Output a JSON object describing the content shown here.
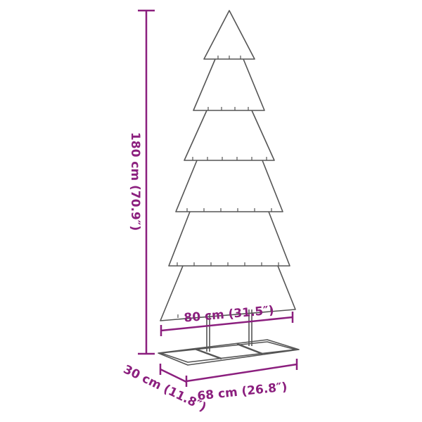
{
  "colors": {
    "dimension": "#8b1f7e",
    "outline": "#555555"
  },
  "dimensions": {
    "height": "180 cm (70.9″)",
    "width": "80 cm (31.5″)",
    "base_width": "68 cm (26.8″)",
    "depth": "30 cm (11.8″)"
  }
}
